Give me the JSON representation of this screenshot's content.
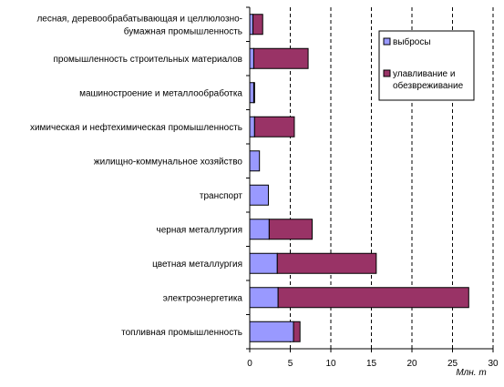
{
  "chart_data": {
    "type": "bar",
    "orientation": "horizontal",
    "stacked": true,
    "categories": [
      "лесная, деревообрабатывающая и целлюлозно-бумажная промышленность",
      "промышленность строительных материалов",
      "машиностроение и металлообработка",
      "химическая и нефтехимическая промышленность",
      "жилищно-коммунальное хозяйство",
      "транспорт",
      "черная металлургия",
      "цветная металлургия",
      "электроэнергетика",
      "топливная промышленность"
    ],
    "category_lines": [
      [
        "лесная, деревообрабатывающая и целлюлозно-",
        "бумажная промышленность"
      ],
      [
        "промышленность строительных материалов"
      ],
      [
        "машиностроение и металлообработка"
      ],
      [
        "химическая и нефтехимическая промышленность"
      ],
      [
        "жилищно-коммунальное хозяйство"
      ],
      [
        "транспорт"
      ],
      [
        "черная металлургия"
      ],
      [
        "цветная металлургия"
      ],
      [
        "электроэнергетика"
      ],
      [
        "топливная промышленность"
      ]
    ],
    "series": [
      {
        "name": "выбросы",
        "color": "#9999ff",
        "values": [
          0.4,
          0.5,
          0.5,
          0.6,
          1.2,
          2.3,
          2.4,
          3.4,
          3.5,
          5.4
        ]
      },
      {
        "name": "улавливание и обезвреживание",
        "color": "#993366",
        "values": [
          1.2,
          6.7,
          0.1,
          4.9,
          0.0,
          0.0,
          5.3,
          12.2,
          23.5,
          0.8
        ]
      }
    ],
    "xlim": [
      0,
      30
    ],
    "xticks": [
      0,
      5,
      10,
      15,
      20,
      25,
      30
    ],
    "xlabel": "Млн. т",
    "legend_position": "right",
    "grid": "dashed vertical"
  }
}
